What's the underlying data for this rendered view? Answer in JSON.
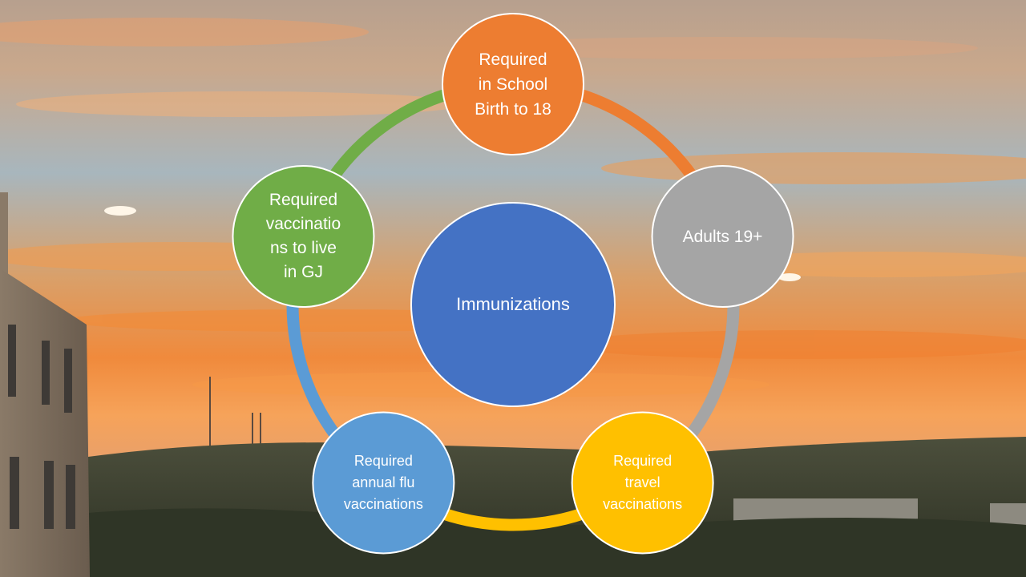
{
  "diagram": {
    "type": "cycle",
    "center": {
      "label": "Immunizations",
      "color": "#4472C4"
    },
    "nodes": [
      {
        "label": "Required\nin School\nBirth to 18",
        "color": "#ED7D31"
      },
      {
        "label": "Adults 19+",
        "color": "#A5A5A5"
      },
      {
        "label": "Required\ntravel\nvaccinations",
        "color": "#FFC000"
      },
      {
        "label": "Required\nannual flu\nvaccinations",
        "color": "#5B9BD5"
      },
      {
        "label": "Required\nvaccinatio\nns to live\nin GJ",
        "color": "#70AD47"
      }
    ]
  }
}
